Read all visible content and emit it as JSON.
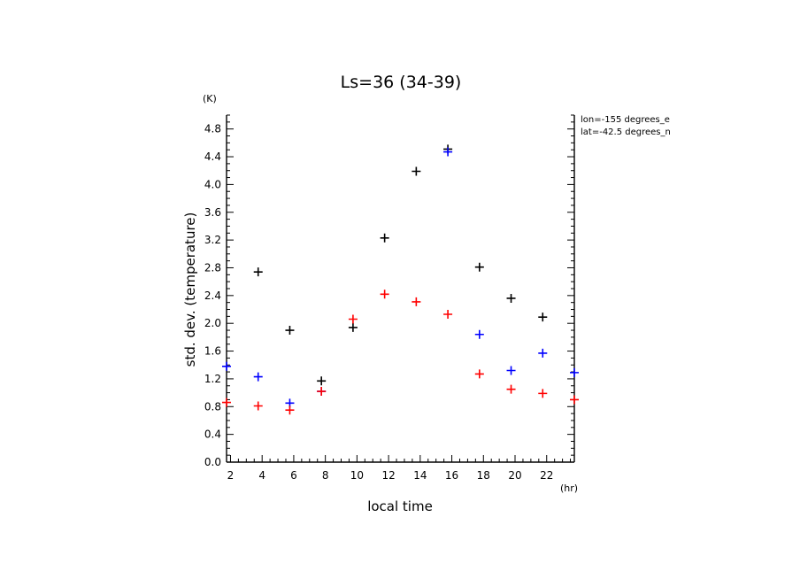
{
  "chart_data": {
    "type": "scatter",
    "title": "Ls=36 (34-39)",
    "xlabel": "local time",
    "ylabel": "std. dev. (temperature)",
    "x_unit": "(hr)",
    "y_unit": "(K)",
    "xlim": [
      1.75,
      23.75
    ],
    "ylim": [
      0,
      5.0
    ],
    "xticks": [
      2,
      4,
      6,
      8,
      10,
      12,
      14,
      16,
      18,
      20,
      22
    ],
    "yticks": [
      0.0,
      0.4,
      0.8,
      1.2,
      1.6,
      2.0,
      2.4,
      2.8,
      3.2,
      3.6,
      4.0,
      4.4,
      4.8
    ],
    "ytick_labels": [
      "0.0",
      "0.4",
      "0.8",
      "1.2",
      "1.6",
      "2.0",
      "2.4",
      "2.8",
      "3.2",
      "3.6",
      "4.0",
      "4.4",
      "4.8"
    ],
    "annotations": [
      "lon=-155 degrees_e",
      "lat=-42.5 degrees_n"
    ],
    "grid": false,
    "series": [
      {
        "color": "#000000",
        "x": [
          3.75,
          5.75,
          7.75,
          9.75,
          11.75,
          13.75,
          15.75,
          17.75,
          19.75,
          21.75
        ],
        "y": [
          2.74,
          1.9,
          1.17,
          1.94,
          3.23,
          4.19,
          4.51,
          2.81,
          2.36,
          2.09
        ]
      },
      {
        "color": "#0000ff",
        "x": [
          1.75,
          3.75,
          5.75,
          7.75,
          15.75,
          17.75,
          19.75,
          21.75,
          23.75
        ],
        "y": [
          1.38,
          1.23,
          0.85,
          1.02,
          4.47,
          1.84,
          1.32,
          1.57,
          1.29
        ]
      },
      {
        "color": "#ff0000",
        "x": [
          1.75,
          3.75,
          5.75,
          7.75,
          9.75,
          11.75,
          13.75,
          15.75,
          17.75,
          19.75,
          21.75,
          23.75
        ],
        "y": [
          0.86,
          0.81,
          0.75,
          1.02,
          2.06,
          2.42,
          2.31,
          2.13,
          1.27,
          1.05,
          0.99,
          0.9
        ]
      }
    ]
  }
}
